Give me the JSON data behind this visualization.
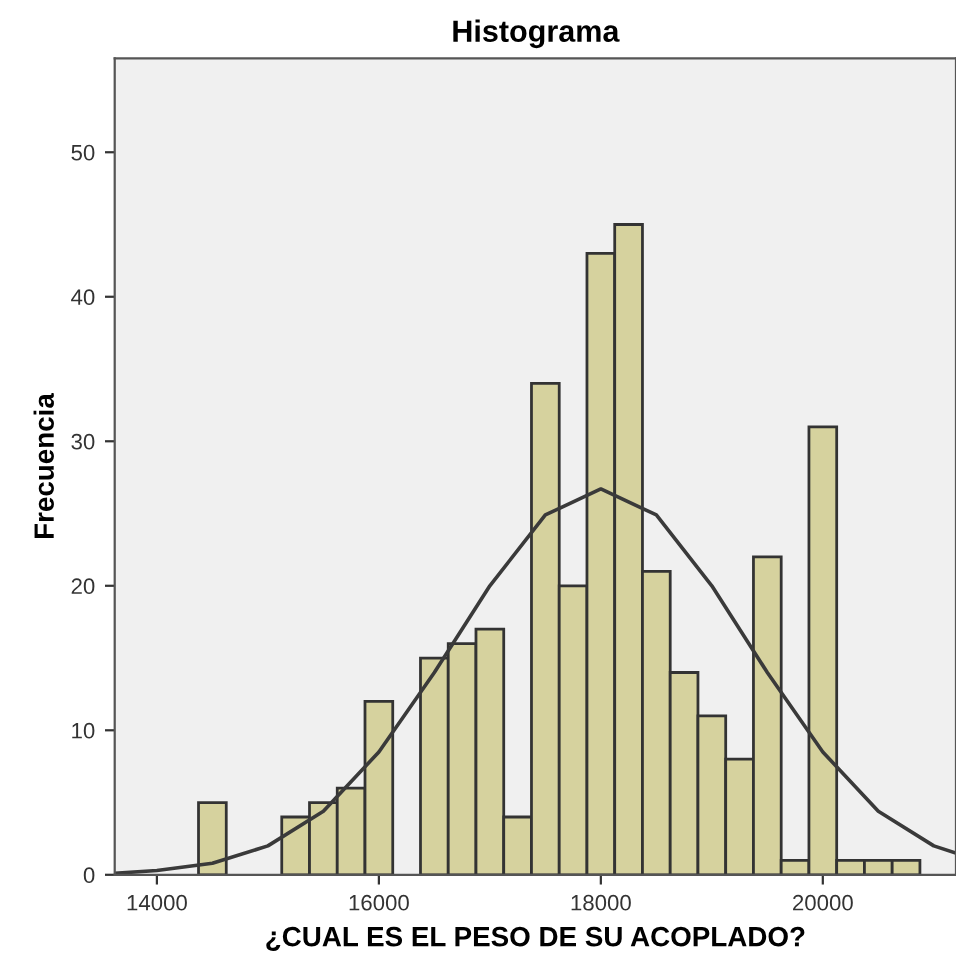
{
  "chart_data": {
    "type": "histogram",
    "title": "Histograma",
    "xlabel": "¿CUAL ES EL PESO DE SU ACOPLADO?",
    "ylabel": "Frecuencia",
    "bins": [
      14375,
      14625,
      14875,
      15125,
      15375,
      15625,
      15875,
      16125,
      16375,
      16625,
      16875,
      17125,
      17375,
      17625,
      17875,
      18125,
      18375,
      18625,
      18875,
      19125,
      19375,
      19625,
      19875,
      20125,
      20375,
      20625,
      20875
    ],
    "values": [
      5,
      0,
      0,
      4,
      5,
      6,
      12,
      0,
      15,
      16,
      17,
      4,
      34,
      20,
      43,
      45,
      21,
      14,
      11,
      8,
      22,
      1,
      31,
      1,
      1,
      1
    ],
    "color": "#d6d29e",
    "series": [
      {
        "type": "line",
        "color": "#3a3a3a",
        "x": [
          13620,
          14000,
          14500,
          15000,
          15500,
          16000,
          16500,
          17000,
          17500,
          18000,
          18500,
          19000,
          19500,
          20000,
          20500,
          21000,
          21200
        ],
        "values": [
          0.1,
          0.3,
          0.8,
          2.0,
          4.4,
          8.5,
          14.0,
          20.0,
          24.9,
          26.7,
          24.9,
          20.0,
          14.0,
          8.5,
          4.4,
          2.0,
          1.5
        ]
      }
    ],
    "xlim": [
      13620,
      21200
    ],
    "xticks": [
      14000,
      16000,
      18000,
      20000
    ],
    "ylim": [
      0,
      56.5
    ],
    "yticks": [
      0,
      10,
      20,
      30,
      40,
      50
    ],
    "grid": false
  }
}
